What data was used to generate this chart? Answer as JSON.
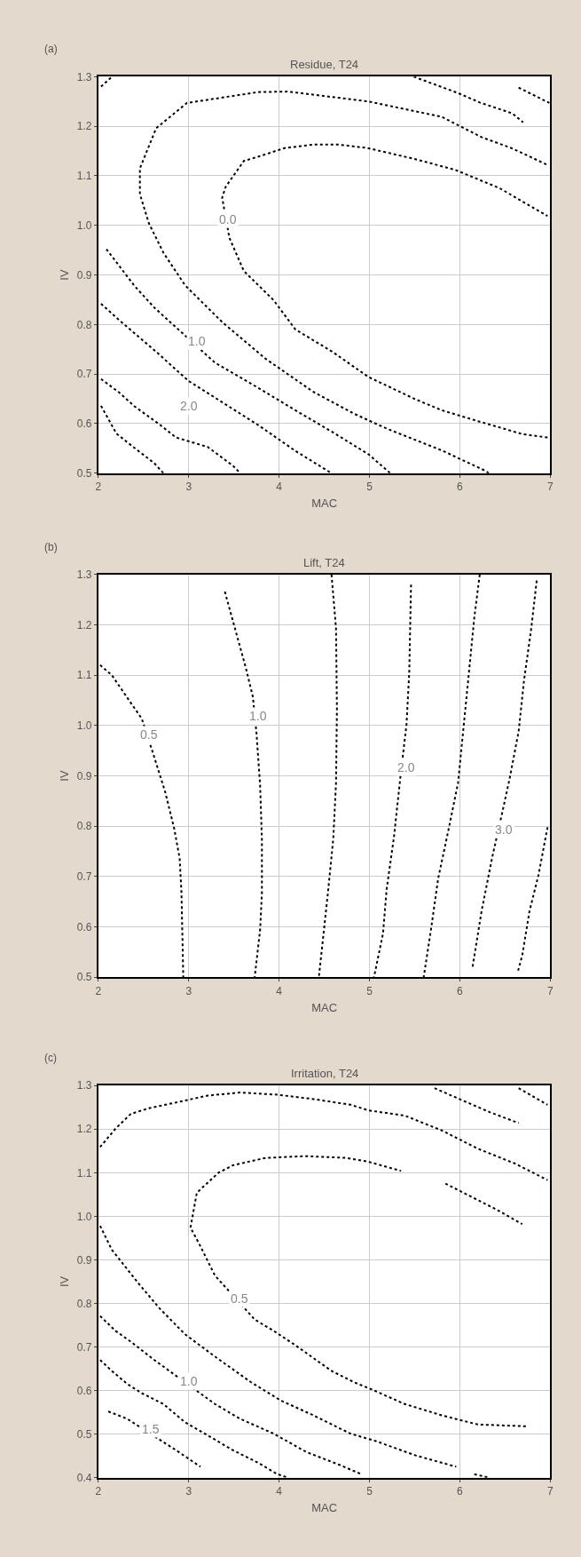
{
  "chart_data": [
    {
      "type": "line",
      "title": "Residue, T24",
      "xlabel": "MAC",
      "ylabel": "IV",
      "xlim": [
        2,
        7
      ],
      "ylim": [
        0.5,
        1.3
      ],
      "xticks": [
        2,
        3,
        4,
        5,
        6,
        7
      ],
      "yticks": [
        {
          "value": 0.5,
          "label": "0.5"
        },
        {
          "value": 0.6,
          "label": "0.6"
        },
        {
          "value": 0.7,
          "label": "0.7"
        },
        {
          "value": 0.8,
          "label": "0.8"
        },
        {
          "value": 0.9,
          "label": "0.9"
        },
        {
          "value": 1.0,
          "label": "1.0"
        },
        {
          "value": 1.1,
          "label": "1.1"
        },
        {
          "value": 1.2,
          "label": "1.2"
        },
        {
          "value": 1.3,
          "label": "1.3"
        }
      ],
      "grid": true,
      "line_style": "dotted",
      "marker": "none",
      "series": [
        {
          "color": "#000000",
          "x": [
            2.03,
            2.15
          ],
          "values": [
            1.28,
            1.3
          ]
        },
        {
          "color": "#000000",
          "x": [
            6.32,
            6.28,
            5.8,
            5.19,
            4.83,
            4.38,
            3.85,
            3.37,
            2.96,
            2.72,
            2.56,
            2.46,
            2.46,
            2.64,
            2.98,
            3.77,
            4.1,
            4.99,
            5.8,
            6.24,
            6.57,
            6.97
          ],
          "values": [
            0.5,
            0.505,
            0.546,
            0.59,
            0.62,
            0.664,
            0.731,
            0.805,
            0.879,
            0.945,
            1.004,
            1.063,
            1.115,
            1.196,
            1.247,
            1.269,
            1.27,
            1.25,
            1.219,
            1.178,
            1.156,
            1.122
          ]
        },
        {
          "color": "#000000",
          "x": [
            6.97,
            6.69,
            6.2,
            5.8,
            5.51,
            4.99,
            4.59,
            4.18,
            3.94,
            3.61,
            3.45,
            3.37,
            3.41,
            3.61,
            3.81,
            4.06,
            4.38,
            4.66,
            4.98,
            5.5,
            5.95,
            6.44,
            6.97
          ],
          "values": [
            0.572,
            0.579,
            0.605,
            0.627,
            0.649,
            0.694,
            0.745,
            0.79,
            0.849,
            0.908,
            0.975,
            1.056,
            1.078,
            1.13,
            1.141,
            1.156,
            1.163,
            1.163,
            1.156,
            1.134,
            1.112,
            1.075,
            1.019
          ]
        },
        {
          "color": "#000000",
          "x": [
            5.49,
            5.98,
            6.22,
            6.58,
            6.7
          ],
          "values": [
            1.3,
            1.267,
            1.248,
            1.226,
            1.208
          ]
        },
        {
          "color": "#000000",
          "x": [
            6.65,
            6.99
          ],
          "values": [
            1.278,
            1.247
          ]
        },
        {
          "color": "#000000",
          "x": [
            2.09,
            2.4,
            2.62,
            3.29,
            3.78,
            4.18,
            4.59,
            4.99,
            5.23
          ],
          "values": [
            0.952,
            0.878,
            0.834,
            0.723,
            0.671,
            0.627,
            0.583,
            0.538,
            0.5
          ]
        },
        {
          "color": "#000000",
          "x": [
            2.03,
            2.23,
            2.64,
            3.0,
            3.45,
            3.77,
            4.18,
            4.58
          ],
          "values": [
            0.842,
            0.809,
            0.745,
            0.686,
            0.634,
            0.597,
            0.545,
            0.5
          ]
        },
        {
          "color": "#000000",
          "x": [
            2.03,
            2.23,
            2.4,
            2.68,
            2.86,
            3.21,
            3.49,
            3.57
          ],
          "values": [
            0.69,
            0.663,
            0.635,
            0.598,
            0.572,
            0.553,
            0.515,
            0.5
          ]
        },
        {
          "color": "#000000",
          "x": [
            2.03,
            2.2,
            2.4,
            2.62,
            2.72
          ],
          "values": [
            0.636,
            0.58,
            0.551,
            0.52,
            0.5
          ]
        }
      ],
      "annotations": [
        "(a)",
        {
          "text": "0.0",
          "x": 3.43,
          "y": 1.013
        },
        {
          "text": "1.0",
          "x": 3.09,
          "y": 0.767
        },
        {
          "text": "2.0",
          "x": 3.0,
          "y": 0.636
        }
      ]
    },
    {
      "type": "line",
      "title": "Lift, T24",
      "xlabel": "MAC",
      "ylabel": "IV",
      "xlim": [
        2,
        7
      ],
      "ylim": [
        0.5,
        1.3
      ],
      "xticks": [
        2,
        3,
        4,
        5,
        6,
        7
      ],
      "yticks": [
        {
          "value": 0.5,
          "label": "0.5"
        },
        {
          "value": 0.6,
          "label": "0.6"
        },
        {
          "value": 0.7,
          "label": "0.7"
        },
        {
          "value": 0.8,
          "label": "0.8"
        },
        {
          "value": 0.9,
          "label": "0.9"
        },
        {
          "value": 1.0,
          "label": "1.0"
        },
        {
          "value": 1.1,
          "label": "1.1"
        },
        {
          "value": 1.2,
          "label": "1.2"
        },
        {
          "value": 1.3,
          "label": "1.3"
        }
      ],
      "grid": true,
      "line_style": "dotted",
      "marker": "none",
      "series": [
        {
          "color": "#000000",
          "x": [
            2.02,
            2.15,
            2.34,
            2.48,
            2.6,
            2.74,
            2.84,
            2.9,
            2.92,
            2.94
          ],
          "values": [
            1.12,
            1.1,
            1.05,
            1.014,
            0.948,
            0.868,
            0.795,
            0.736,
            0.667,
            0.5
          ]
        },
        {
          "color": "#000000",
          "x": [
            3.4,
            3.53,
            3.63,
            3.71,
            3.75,
            3.79,
            3.81,
            3.81,
            3.79,
            3.73
          ],
          "values": [
            1.266,
            1.181,
            1.116,
            1.057,
            0.985,
            0.882,
            0.773,
            0.667,
            0.594,
            0.5
          ]
        },
        {
          "color": "#000000",
          "x": [
            4.58,
            4.63,
            4.64,
            4.63,
            4.6,
            4.54,
            4.44
          ],
          "values": [
            1.3,
            1.193,
            1.032,
            0.886,
            0.776,
            0.667,
            0.5
          ]
        },
        {
          "color": "#000000",
          "x": [
            5.46,
            5.44,
            5.41,
            5.34,
            5.27,
            5.19,
            5.15,
            5.05
          ],
          "values": [
            1.28,
            1.105,
            1.003,
            0.894,
            0.777,
            0.675,
            0.587,
            0.5
          ]
        },
        {
          "color": "#000000",
          "x": [
            6.22,
            6.16,
            6.08,
            5.98,
            5.88,
            5.76,
            5.68,
            5.6
          ],
          "values": [
            1.3,
            1.215,
            1.068,
            0.886,
            0.798,
            0.696,
            0.594,
            0.5
          ]
        },
        {
          "color": "#000000",
          "x": [
            6.85,
            6.79,
            6.71,
            6.65,
            6.55,
            6.47,
            6.36,
            6.24,
            6.14
          ],
          "values": [
            1.288,
            1.193,
            1.09,
            0.988,
            0.894,
            0.828,
            0.74,
            0.631,
            0.52
          ]
        },
        {
          "color": "#000000",
          "x": [
            6.97,
            6.87,
            6.77,
            6.69,
            6.64
          ],
          "values": [
            0.798,
            0.703,
            0.631,
            0.543,
            0.51
          ]
        }
      ],
      "annotations": [
        "(b)",
        {
          "text": "0.5",
          "x": 2.56,
          "y": 0.982
        },
        {
          "text": "1.0",
          "x": 3.77,
          "y": 1.02
        },
        {
          "text": "2.0",
          "x": 5.41,
          "y": 0.916
        },
        {
          "text": "3.0",
          "x": 6.49,
          "y": 0.794
        }
      ]
    },
    {
      "type": "line",
      "title": "Irritation, T24",
      "xlabel": "MAC",
      "ylabel": "IV",
      "xlim": [
        2,
        7
      ],
      "ylim": [
        0.4,
        1.3
      ],
      "xticks": [
        2,
        3,
        4,
        5,
        6,
        7
      ],
      "yticks": [
        {
          "value": 0.4,
          "label": "0.4"
        },
        {
          "value": 0.5,
          "label": "0.5"
        },
        {
          "value": 0.6,
          "label": "0.6"
        },
        {
          "value": 0.7,
          "label": "0.7"
        },
        {
          "value": 0.8,
          "label": "0.8"
        },
        {
          "value": 0.9,
          "label": "0.9"
        },
        {
          "value": 1.0,
          "label": "1.0"
        },
        {
          "value": 1.1,
          "label": "1.1"
        },
        {
          "value": 1.2,
          "label": "1.2"
        },
        {
          "value": 1.3,
          "label": "1.3"
        }
      ],
      "grid": true,
      "line_style": "dotted",
      "marker": "none",
      "series": [
        {
          "color": "#000000",
          "x": [
            2.02,
            2.19,
            2.36,
            2.56,
            2.88,
            3.21,
            3.57,
            3.98,
            4.38,
            4.79,
            4.99,
            5.39,
            5.8,
            6.2,
            6.61,
            6.97
          ],
          "values": [
            1.159,
            1.201,
            1.235,
            1.248,
            1.262,
            1.277,
            1.284,
            1.279,
            1.269,
            1.256,
            1.243,
            1.231,
            1.197,
            1.155,
            1.121,
            1.083
          ]
        },
        {
          "color": "#000000",
          "x": [
            6.73,
            6.2,
            5.8,
            5.39,
            5.03,
            4.83,
            4.58,
            4.18,
            3.94,
            3.73,
            3.29,
            3.13,
            3.02,
            3.09,
            3.33,
            3.49,
            3.85,
            4.3,
            4.74,
            4.99,
            5.35
          ],
          "values": [
            0.518,
            0.522,
            0.543,
            0.569,
            0.602,
            0.619,
            0.645,
            0.704,
            0.737,
            0.763,
            0.864,
            0.931,
            0.974,
            1.054,
            1.1,
            1.117,
            1.134,
            1.138,
            1.134,
            1.125,
            1.104
          ]
        },
        {
          "color": "#000000",
          "x": [
            5.84,
            6.04,
            6.2,
            6.4,
            6.69
          ],
          "values": [
            1.075,
            1.054,
            1.037,
            1.016,
            0.982
          ]
        },
        {
          "color": "#000000",
          "x": [
            5.72,
            6.04,
            6.33,
            6.65
          ],
          "values": [
            1.294,
            1.265,
            1.239,
            1.214
          ]
        },
        {
          "color": "#000000",
          "x": [
            6.65,
            6.97
          ],
          "values": [
            1.294,
            1.256
          ]
        },
        {
          "color": "#000000",
          "x": [
            2.02,
            2.15,
            2.44,
            2.68,
            2.96,
            3.29,
            3.69,
            4.02,
            4.38,
            4.79,
            5.07,
            5.51,
            5.96
          ],
          "values": [
            0.978,
            0.923,
            0.847,
            0.788,
            0.729,
            0.678,
            0.619,
            0.577,
            0.543,
            0.501,
            0.484,
            0.451,
            0.425
          ]
        },
        {
          "color": "#000000",
          "x": [
            2.02,
            2.19,
            2.36,
            2.62,
            3.29,
            3.57,
            3.94,
            4.3,
            4.66,
            4.91
          ],
          "values": [
            0.771,
            0.737,
            0.712,
            0.67,
            0.569,
            0.535,
            0.501,
            0.459,
            0.43,
            0.408
          ]
        },
        {
          "color": "#000000",
          "x": [
            2.02,
            2.15,
            2.32,
            2.48,
            2.72,
            2.96,
            3.21,
            3.49,
            3.77,
            3.98,
            4.1
          ],
          "values": [
            0.67,
            0.645,
            0.615,
            0.594,
            0.569,
            0.527,
            0.497,
            0.463,
            0.434,
            0.408,
            0.4
          ]
        },
        {
          "color": "#000000",
          "x": [
            2.11,
            2.32,
            2.86,
            3.13
          ],
          "values": [
            0.552,
            0.535,
            0.463,
            0.425
          ]
        },
        {
          "color": "#000000",
          "x": [
            6.16,
            6.32
          ],
          "values": [
            0.408,
            0.4
          ]
        }
      ],
      "annotations": [
        "(c)",
        {
          "text": "0.5",
          "x": 3.56,
          "y": 0.812
        },
        {
          "text": "1.0",
          "x": 3.0,
          "y": 0.622
        },
        {
          "text": "1.5",
          "x": 2.58,
          "y": 0.511
        }
      ]
    }
  ]
}
